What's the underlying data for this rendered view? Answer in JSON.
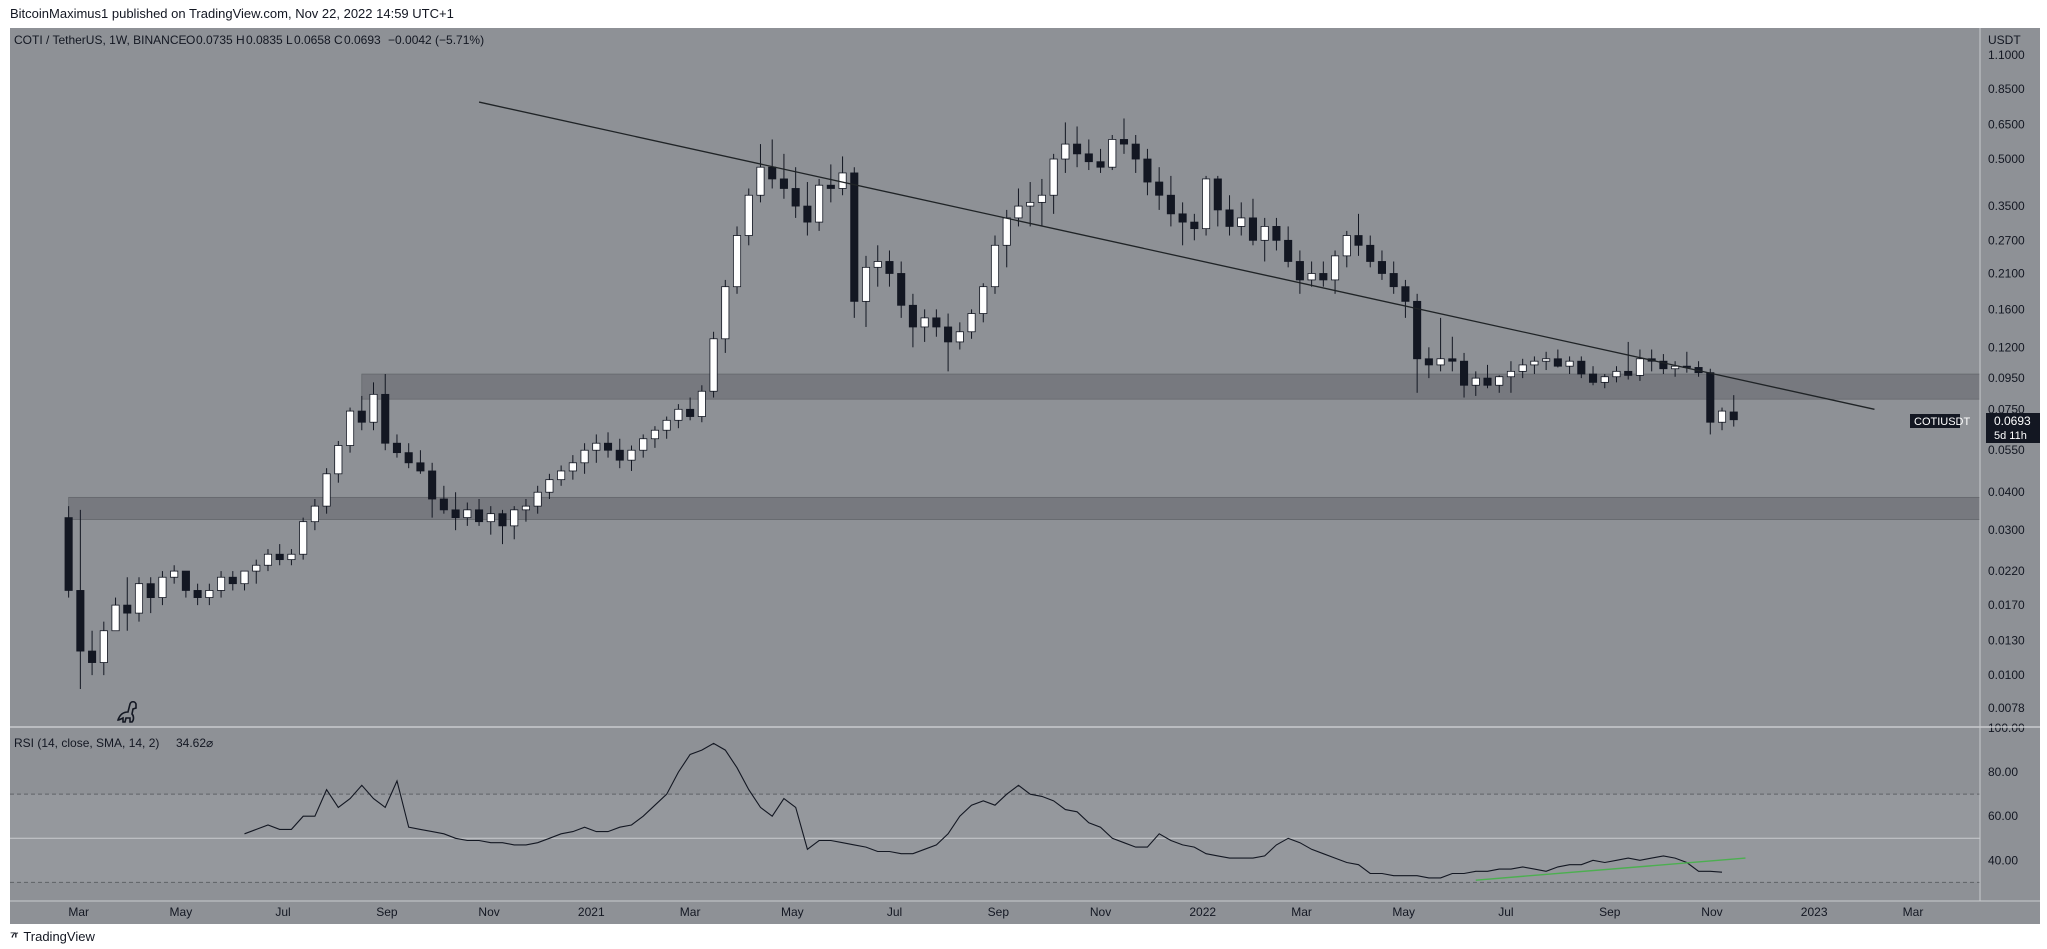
{
  "header": {
    "publisher": "BitcoinMaximus1 published on TradingView.com, Nov 22, 2022 14:59 UTC+1"
  },
  "footer": {
    "brand": "TradingView"
  },
  "colors": {
    "background": "#8e9196",
    "candle_up": "#ffffff",
    "candle_down": "#131722",
    "zone": "#6f7277",
    "trendline": "#1f2326",
    "rsi_line": "#131722",
    "rsi_divergence": "#4caf50"
  },
  "chart_data": [
    {
      "type": "candlestick",
      "title": "COTI / TetherUS, 1W, BINANCE",
      "ohlc_label": {
        "o": "O",
        "o_val": "0.0735",
        "h": "H",
        "h_val": "0.0835",
        "l": "L",
        "l_val": "0.0658",
        "c": "C",
        "c_val": "0.0693",
        "chg": "−0.0042 (−5.71%)"
      },
      "y_scale": "log",
      "y_unit": "USDT",
      "yticks": [
        "1.1000",
        "0.8500",
        "0.6500",
        "0.5000",
        "0.3500",
        "0.2700",
        "0.2100",
        "0.1600",
        "0.1200",
        "0.0950",
        "0.0750",
        "0.0550",
        "0.0400",
        "0.0300",
        "0.0220",
        "0.0170",
        "0.0130",
        "0.0100",
        "0.0078"
      ],
      "ylim": [
        0.0068,
        1.35
      ],
      "xticks": [
        "Mar",
        "May",
        "Jul",
        "Sep",
        "Nov",
        "2021",
        "Mar",
        "May",
        "Jul",
        "Sep",
        "Nov",
        "2022",
        "Mar",
        "May",
        "Jul",
        "Sep",
        "Nov",
        "2023",
        "Mar"
      ],
      "xtick_dates": [
        "2020-03-01",
        "2020-05-01",
        "2020-07-01",
        "2020-09-01",
        "2020-11-01",
        "2021-01-01",
        "2021-03-01",
        "2021-05-01",
        "2021-07-01",
        "2021-09-01",
        "2021-11-01",
        "2022-01-01",
        "2022-03-01",
        "2022-05-01",
        "2022-07-01",
        "2022-09-01",
        "2022-11-01",
        "2023-01-01",
        "2023-03-01"
      ],
      "x_range": [
        "2020-01-20",
        "2023-04-10"
      ],
      "first_candle_date": "2020-02-24",
      "candles": [
        [
          0.033,
          0.036,
          0.018,
          0.019
        ],
        [
          0.019,
          0.035,
          0.009,
          0.012
        ],
        [
          0.012,
          0.014,
          0.01,
          0.011
        ],
        [
          0.011,
          0.015,
          0.01,
          0.014
        ],
        [
          0.014,
          0.018,
          0.014,
          0.017
        ],
        [
          0.017,
          0.021,
          0.014,
          0.016
        ],
        [
          0.016,
          0.021,
          0.015,
          0.02
        ],
        [
          0.02,
          0.021,
          0.016,
          0.018
        ],
        [
          0.018,
          0.022,
          0.017,
          0.021
        ],
        [
          0.021,
          0.023,
          0.02,
          0.022
        ],
        [
          0.022,
          0.022,
          0.018,
          0.019
        ],
        [
          0.019,
          0.02,
          0.017,
          0.018
        ],
        [
          0.018,
          0.02,
          0.017,
          0.019
        ],
        [
          0.019,
          0.022,
          0.018,
          0.021
        ],
        [
          0.021,
          0.022,
          0.019,
          0.02
        ],
        [
          0.02,
          0.022,
          0.019,
          0.022
        ],
        [
          0.022,
          0.024,
          0.02,
          0.023
        ],
        [
          0.023,
          0.026,
          0.022,
          0.025
        ],
        [
          0.025,
          0.027,
          0.023,
          0.024
        ],
        [
          0.024,
          0.026,
          0.023,
          0.025
        ],
        [
          0.025,
          0.033,
          0.024,
          0.032
        ],
        [
          0.032,
          0.038,
          0.03,
          0.036
        ],
        [
          0.036,
          0.048,
          0.034,
          0.046
        ],
        [
          0.046,
          0.059,
          0.043,
          0.057
        ],
        [
          0.057,
          0.076,
          0.054,
          0.074
        ],
        [
          0.074,
          0.083,
          0.064,
          0.068
        ],
        [
          0.068,
          0.092,
          0.064,
          0.084
        ],
        [
          0.084,
          0.098,
          0.055,
          0.058
        ],
        [
          0.058,
          0.062,
          0.052,
          0.054
        ],
        [
          0.054,
          0.058,
          0.048,
          0.05
        ],
        [
          0.05,
          0.055,
          0.046,
          0.047
        ],
        [
          0.047,
          0.05,
          0.033,
          0.038
        ],
        [
          0.038,
          0.042,
          0.034,
          0.035
        ],
        [
          0.035,
          0.04,
          0.03,
          0.033
        ],
        [
          0.033,
          0.037,
          0.031,
          0.035
        ],
        [
          0.035,
          0.038,
          0.031,
          0.032
        ],
        [
          0.032,
          0.036,
          0.029,
          0.034
        ],
        [
          0.034,
          0.035,
          0.027,
          0.031
        ],
        [
          0.031,
          0.036,
          0.028,
          0.035
        ],
        [
          0.035,
          0.038,
          0.032,
          0.036
        ],
        [
          0.036,
          0.042,
          0.034,
          0.04
        ],
        [
          0.04,
          0.046,
          0.038,
          0.044
        ],
        [
          0.044,
          0.049,
          0.042,
          0.047
        ],
        [
          0.047,
          0.053,
          0.044,
          0.05
        ],
        [
          0.05,
          0.058,
          0.046,
          0.055
        ],
        [
          0.055,
          0.062,
          0.05,
          0.058
        ],
        [
          0.058,
          0.063,
          0.052,
          0.055
        ],
        [
          0.055,
          0.06,
          0.048,
          0.051
        ],
        [
          0.051,
          0.057,
          0.047,
          0.055
        ],
        [
          0.055,
          0.062,
          0.052,
          0.06
        ],
        [
          0.06,
          0.066,
          0.056,
          0.064
        ],
        [
          0.064,
          0.071,
          0.06,
          0.069
        ],
        [
          0.069,
          0.078,
          0.065,
          0.075
        ],
        [
          0.075,
          0.082,
          0.069,
          0.071
        ],
        [
          0.071,
          0.09,
          0.068,
          0.086
        ],
        [
          0.086,
          0.135,
          0.082,
          0.128
        ],
        [
          0.128,
          0.2,
          0.115,
          0.19
        ],
        [
          0.19,
          0.3,
          0.18,
          0.28
        ],
        [
          0.28,
          0.4,
          0.26,
          0.38
        ],
        [
          0.38,
          0.56,
          0.36,
          0.47
        ],
        [
          0.47,
          0.58,
          0.4,
          0.43
        ],
        [
          0.43,
          0.52,
          0.37,
          0.4
        ],
        [
          0.4,
          0.47,
          0.32,
          0.35
        ],
        [
          0.35,
          0.42,
          0.28,
          0.31
        ],
        [
          0.31,
          0.43,
          0.29,
          0.41
        ],
        [
          0.41,
          0.48,
          0.36,
          0.4
        ],
        [
          0.4,
          0.51,
          0.38,
          0.45
        ],
        [
          0.45,
          0.47,
          0.15,
          0.17
        ],
        [
          0.17,
          0.24,
          0.14,
          0.22
        ],
        [
          0.22,
          0.26,
          0.19,
          0.23
        ],
        [
          0.23,
          0.25,
          0.19,
          0.21
        ],
        [
          0.21,
          0.23,
          0.15,
          0.165
        ],
        [
          0.165,
          0.18,
          0.12,
          0.14
        ],
        [
          0.14,
          0.16,
          0.125,
          0.15
        ],
        [
          0.15,
          0.16,
          0.13,
          0.14
        ],
        [
          0.14,
          0.155,
          0.1,
          0.125
        ],
        [
          0.125,
          0.145,
          0.118,
          0.135
        ],
        [
          0.135,
          0.16,
          0.128,
          0.155
        ],
        [
          0.155,
          0.195,
          0.145,
          0.19
        ],
        [
          0.19,
          0.28,
          0.18,
          0.26
        ],
        [
          0.26,
          0.34,
          0.22,
          0.32
        ],
        [
          0.32,
          0.4,
          0.3,
          0.35
        ],
        [
          0.35,
          0.42,
          0.3,
          0.36
        ],
        [
          0.36,
          0.43,
          0.3,
          0.38
        ],
        [
          0.38,
          0.52,
          0.33,
          0.5
        ],
        [
          0.5,
          0.66,
          0.45,
          0.56
        ],
        [
          0.56,
          0.64,
          0.47,
          0.52
        ],
        [
          0.52,
          0.58,
          0.46,
          0.49
        ],
        [
          0.49,
          0.54,
          0.45,
          0.47
        ],
        [
          0.47,
          0.6,
          0.46,
          0.58
        ],
        [
          0.58,
          0.68,
          0.52,
          0.56
        ],
        [
          0.56,
          0.6,
          0.45,
          0.5
        ],
        [
          0.5,
          0.54,
          0.38,
          0.42
        ],
        [
          0.42,
          0.47,
          0.34,
          0.38
        ],
        [
          0.38,
          0.44,
          0.3,
          0.33
        ],
        [
          0.33,
          0.36,
          0.26,
          0.31
        ],
        [
          0.31,
          0.33,
          0.27,
          0.295
        ],
        [
          0.295,
          0.44,
          0.28,
          0.43
        ],
        [
          0.43,
          0.44,
          0.3,
          0.34
        ],
        [
          0.34,
          0.38,
          0.28,
          0.3
        ],
        [
          0.3,
          0.36,
          0.28,
          0.32
        ],
        [
          0.32,
          0.37,
          0.26,
          0.27
        ],
        [
          0.27,
          0.32,
          0.23,
          0.3
        ],
        [
          0.3,
          0.32,
          0.25,
          0.27
        ],
        [
          0.27,
          0.3,
          0.22,
          0.23
        ],
        [
          0.23,
          0.25,
          0.18,
          0.2
        ],
        [
          0.2,
          0.23,
          0.19,
          0.21
        ],
        [
          0.21,
          0.23,
          0.19,
          0.2
        ],
        [
          0.2,
          0.25,
          0.18,
          0.24
        ],
        [
          0.24,
          0.29,
          0.22,
          0.28
        ],
        [
          0.28,
          0.33,
          0.24,
          0.26
        ],
        [
          0.26,
          0.28,
          0.22,
          0.23
        ],
        [
          0.23,
          0.25,
          0.2,
          0.21
        ],
        [
          0.21,
          0.23,
          0.18,
          0.19
        ],
        [
          0.19,
          0.2,
          0.15,
          0.17
        ],
        [
          0.17,
          0.18,
          0.085,
          0.11
        ],
        [
          0.11,
          0.12,
          0.095,
          0.105
        ],
        [
          0.105,
          0.15,
          0.1,
          0.11
        ],
        [
          0.11,
          0.13,
          0.1,
          0.108
        ],
        [
          0.108,
          0.115,
          0.082,
          0.09
        ],
        [
          0.09,
          0.1,
          0.083,
          0.095
        ],
        [
          0.095,
          0.105,
          0.088,
          0.09
        ],
        [
          0.09,
          0.097,
          0.085,
          0.096
        ],
        [
          0.096,
          0.108,
          0.085,
          0.1
        ],
        [
          0.1,
          0.11,
          0.095,
          0.105
        ],
        [
          0.105,
          0.112,
          0.098,
          0.108
        ],
        [
          0.108,
          0.116,
          0.101,
          0.11
        ],
        [
          0.11,
          0.118,
          0.103,
          0.104
        ],
        [
          0.104,
          0.112,
          0.098,
          0.108
        ],
        [
          0.108,
          0.112,
          0.095,
          0.098
        ],
        [
          0.098,
          0.104,
          0.09,
          0.092
        ],
        [
          0.092,
          0.098,
          0.088,
          0.096
        ],
        [
          0.096,
          0.104,
          0.092,
          0.1
        ],
        [
          0.1,
          0.125,
          0.094,
          0.097
        ],
        [
          0.097,
          0.118,
          0.093,
          0.11
        ],
        [
          0.11,
          0.118,
          0.1,
          0.108
        ],
        [
          0.108,
          0.114,
          0.098,
          0.102
        ],
        [
          0.102,
          0.108,
          0.096,
          0.104
        ],
        [
          0.104,
          0.116,
          0.099,
          0.103
        ],
        [
          0.103,
          0.108,
          0.096,
          0.099
        ],
        [
          0.099,
          0.102,
          0.062,
          0.068
        ],
        [
          0.068,
          0.076,
          0.064,
          0.074
        ],
        [
          0.0735,
          0.0835,
          0.0658,
          0.0693
        ]
      ],
      "zones": [
        {
          "low": 0.081,
          "high": 0.098,
          "start": "2020-08-17"
        },
        {
          "low": 0.0325,
          "high": 0.0385,
          "start": "2020-02-24"
        }
      ],
      "trendline": {
        "start_date": "2020-10-26",
        "start_value": 0.77,
        "end_date": "2023-02-06",
        "end_value": 0.075
      },
      "current_label": {
        "symbol": "COTIUSDT",
        "price": "0.0693",
        "countdown": "5d 11h"
      }
    },
    {
      "type": "line",
      "title": "RSI (14, close, SMA, 14, 2)",
      "value_label": "34.62",
      "extra_glyph": "⌀",
      "ylim": [
        22,
        100
      ],
      "yticks": [
        "100.00",
        "80.00",
        "60.00",
        "40.00"
      ],
      "levels": [
        30,
        50,
        70
      ],
      "start_date": "2020-06-08",
      "values": [
        52,
        54,
        56,
        54,
        54,
        60,
        60,
        72,
        64,
        68,
        74,
        68,
        64,
        76,
        55,
        54,
        53,
        52,
        50,
        49,
        49,
        48,
        48,
        47,
        47,
        48,
        50,
        52,
        53,
        55,
        53,
        53,
        55,
        56,
        60,
        65,
        70,
        80,
        88,
        90,
        93,
        90,
        82,
        72,
        64,
        60,
        68,
        64,
        45,
        49,
        49,
        48,
        47,
        46,
        44,
        44,
        43,
        43,
        45,
        47,
        52,
        60,
        65,
        67,
        65,
        70,
        74,
        70,
        69,
        67,
        63,
        62,
        57,
        55,
        50,
        48,
        46,
        46,
        52,
        49,
        47,
        46,
        43,
        42,
        41,
        41,
        41,
        42,
        47,
        50,
        48,
        45,
        43,
        41,
        39,
        38,
        34,
        34,
        33,
        33,
        33,
        32,
        32,
        34,
        34,
        35,
        35,
        36,
        36,
        37,
        36,
        35,
        37,
        38,
        38,
        40,
        39,
        40,
        41,
        40,
        41,
        42,
        41,
        39,
        35,
        35,
        34.62
      ],
      "divergence": {
        "start_date": "2022-06-13",
        "start_value": 31,
        "end_date": "2022-11-21",
        "end_value": 41
      }
    }
  ]
}
